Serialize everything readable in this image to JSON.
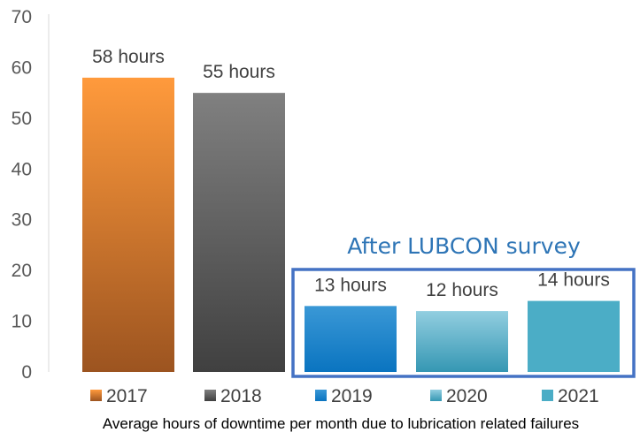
{
  "chart_data": {
    "type": "bar",
    "categories": [
      "2017",
      "2018",
      "2019",
      "2020",
      "2021"
    ],
    "values": [
      58,
      55,
      13,
      12,
      14
    ],
    "data_labels": [
      "58 hours",
      "55 hours",
      "13 hours",
      "12 hours",
      "14 hours"
    ],
    "xlabel": "Average hours of downtime per month due to lubrication related failures",
    "ylabel": "",
    "ylim": [
      0,
      70
    ],
    "yticks": [
      0,
      10,
      20,
      30,
      40,
      50,
      60,
      70
    ],
    "grid": false,
    "legend": {
      "placement": "bottom",
      "entries": [
        "2017",
        "2018",
        "2019",
        "2020",
        "2021"
      ]
    },
    "annotation": {
      "text": "After LUBCON survey",
      "applies_to": [
        "2019",
        "2020",
        "2021"
      ]
    },
    "colors": {
      "2017": {
        "top": "#ff9a3c",
        "bottom": "#9c5420"
      },
      "2018": {
        "top": "#808080",
        "bottom": "#404040"
      },
      "2019": {
        "top": "#3a98d6",
        "bottom": "#0a74c0"
      },
      "2020": {
        "top": "#92cee0",
        "bottom": "#3597b3"
      },
      "2021": {
        "top": "#4badc6",
        "bottom": "#4badc6"
      },
      "annotation_box": "#4472c4",
      "annotation_text": "#2e75b6"
    }
  }
}
